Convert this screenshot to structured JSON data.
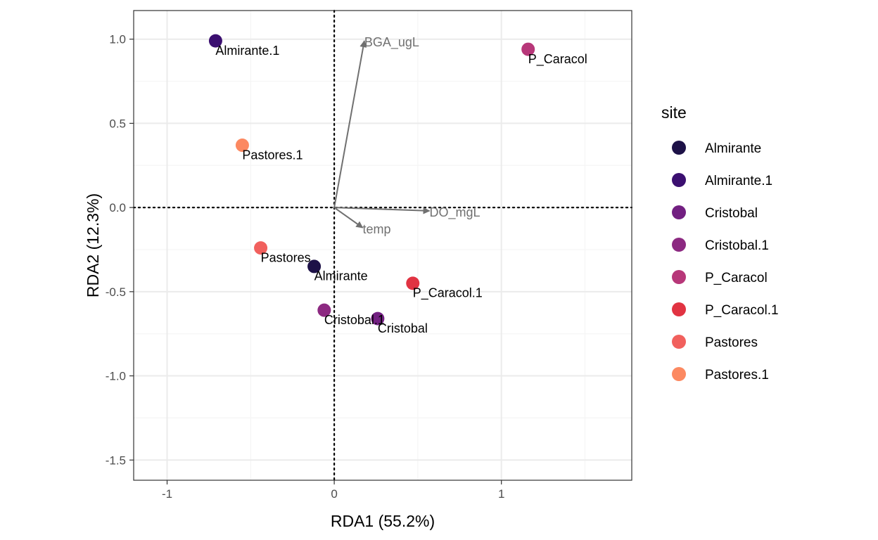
{
  "chart_data": {
    "type": "scatter",
    "xlabel": "RDA1 (55.2%)",
    "ylabel": "RDA2 (12.3%)",
    "xlim": [
      -1.2,
      1.78
    ],
    "ylim": [
      -1.62,
      1.17
    ],
    "x_ticks": [
      -1,
      0,
      1
    ],
    "x_tick_labels": [
      "-1",
      "0",
      "1"
    ],
    "y_ticks": [
      1.0,
      0.5,
      0.0,
      -0.5,
      -1.0,
      -1.5
    ],
    "y_tick_labels": [
      "1.0",
      "0.5",
      "0.0",
      "-0.5",
      "-1.0",
      "-1.5"
    ],
    "grid": true,
    "reference_lines": {
      "x": 0,
      "y": 0,
      "style": "dotted"
    },
    "points": [
      {
        "site": "Almirante.1",
        "label": "Almirante.1",
        "x": -0.71,
        "y": 0.99,
        "color": "#3b0f70"
      },
      {
        "site": "P_Caracol",
        "label": "P_Caracol",
        "x": 1.16,
        "y": 0.94,
        "color": "#b73779"
      },
      {
        "site": "Pastores.1",
        "label": "Pastores.1",
        "x": -0.55,
        "y": 0.37,
        "color": "#fc8961"
      },
      {
        "site": "Pastores",
        "label": "Pastores",
        "x": -0.44,
        "y": -0.24,
        "color": "#f1605d"
      },
      {
        "site": "Almirante",
        "label": "Almirante",
        "x": -0.12,
        "y": -0.35,
        "color": "#1d1147"
      },
      {
        "site": "P_Caracol.1",
        "label": "P_Caracol.1",
        "x": 0.47,
        "y": -0.45,
        "color": "#e13342"
      },
      {
        "site": "Cristobal.1",
        "label": "Cristobal.1",
        "x": -0.06,
        "y": -0.61,
        "color": "#8c2981"
      },
      {
        "site": "Cristobal",
        "label": "Cristobal",
        "x": 0.26,
        "y": -0.66,
        "color": "#721f81"
      }
    ],
    "vectors": [
      {
        "label": "BGA_ugL",
        "x": 0.18,
        "y": 0.99
      },
      {
        "label": "DO_mgL",
        "x": 0.57,
        "y": -0.02
      },
      {
        "label": "temp",
        "x": 0.17,
        "y": -0.12
      }
    ],
    "legend": {
      "title": "site",
      "position": "right",
      "entries": [
        {
          "label": "Almirante",
          "color": "#1d1147"
        },
        {
          "label": "Almirante.1",
          "color": "#3b0f70"
        },
        {
          "label": "Cristobal",
          "color": "#721f81"
        },
        {
          "label": "Cristobal.1",
          "color": "#8c2981"
        },
        {
          "label": "P_Caracol",
          "color": "#b73779"
        },
        {
          "label": "P_Caracol.1",
          "color": "#e13342"
        },
        {
          "label": "Pastores",
          "color": "#f1605d"
        },
        {
          "label": "Pastores.1",
          "color": "#fc8961"
        }
      ]
    },
    "colors": {
      "panel_border": "#333333",
      "grid_major": "#ebebeb",
      "grid_minor": "#f5f5f5",
      "vector": "#707070",
      "axis_text": "#4d4d4d"
    }
  }
}
